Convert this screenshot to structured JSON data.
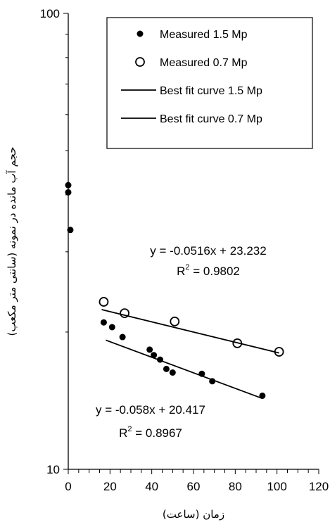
{
  "chart_data": {
    "type": "scatter",
    "xlabel": "زمان (ساعت)",
    "ylabel": "حجم آب مانده در نمونه (سانتی متر مکعب)",
    "xlim": [
      0,
      120
    ],
    "ylim": [
      10,
      100
    ],
    "y_scale": "log",
    "x_ticks": [
      "0",
      "20",
      "40",
      "60",
      "80",
      "100",
      "120"
    ],
    "y_ticks": [
      "10",
      "100"
    ],
    "grid": false,
    "legend_position": "top-right",
    "series": [
      {
        "name": "Measured 1.5 Mp",
        "marker": "filled-circle",
        "points": [
          {
            "x": 0,
            "y": 42.0
          },
          {
            "x": 0,
            "y": 40.5
          },
          {
            "x": 1,
            "y": 33.5
          },
          {
            "x": 17,
            "y": 21.0
          },
          {
            "x": 21,
            "y": 20.5
          },
          {
            "x": 26,
            "y": 19.5
          },
          {
            "x": 39,
            "y": 18.3
          },
          {
            "x": 41,
            "y": 17.8
          },
          {
            "x": 44,
            "y": 17.4
          },
          {
            "x": 47,
            "y": 16.6
          },
          {
            "x": 50,
            "y": 16.3
          },
          {
            "x": 64,
            "y": 16.2
          },
          {
            "x": 69,
            "y": 15.6
          },
          {
            "x": 93,
            "y": 14.5
          }
        ]
      },
      {
        "name": "Measured 0.7 Mp",
        "marker": "open-circle",
        "points": [
          {
            "x": 17,
            "y": 23.3
          },
          {
            "x": 27,
            "y": 22.0
          },
          {
            "x": 51,
            "y": 21.1
          },
          {
            "x": 81,
            "y": 18.9
          },
          {
            "x": 101,
            "y": 18.1
          }
        ]
      },
      {
        "name": "Best fit curve 1.5 Mp",
        "line": true,
        "points": [
          {
            "x": 18,
            "y": 19.2
          },
          {
            "x": 93,
            "y": 14.3
          }
        ]
      },
      {
        "name": "Best fit curve 0.7 Mp",
        "line": true,
        "points": [
          {
            "x": 16,
            "y": 22.4
          },
          {
            "x": 101,
            "y": 18.0
          }
        ]
      }
    ],
    "annotations": [
      {
        "eq": "y = -0.0516x + 23.232",
        "r2_prefix": "R",
        "r2_sup": "2",
        "r2_value": " = 0.9802"
      },
      {
        "eq": "y = -0.058x + 20.417",
        "r2_prefix": "R",
        "r2_sup": "2",
        "r2_value": " = 0.8967"
      }
    ]
  }
}
